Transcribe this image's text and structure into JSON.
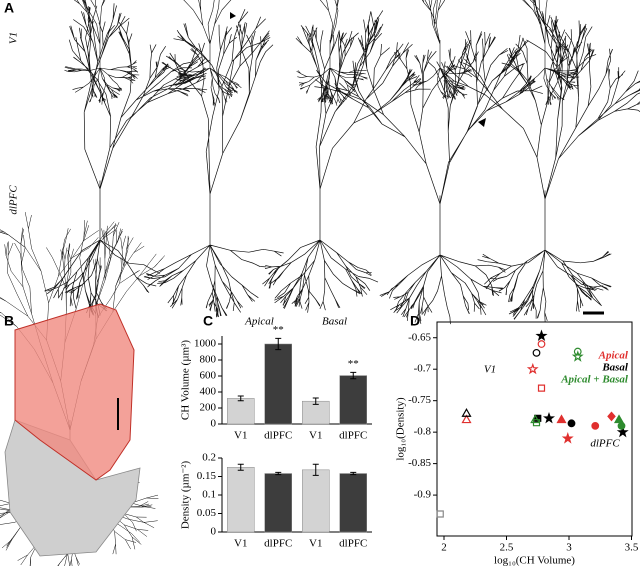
{
  "panels": {
    "letters": [
      "A",
      "B",
      "C",
      "D"
    ],
    "rows": [
      "V1",
      "dlPFC"
    ]
  },
  "chart_data": [
    {
      "type": "bar",
      "ylabel": "CH Volume (µm³)",
      "groups": [
        "Apical",
        "Basal"
      ],
      "categories": [
        "V1",
        "dlPFC",
        "V1",
        "dlPFC"
      ],
      "values": [
        320,
        1000,
        285,
        605
      ],
      "errors": [
        30,
        70,
        40,
        40
      ],
      "colors": [
        "#d3d3d3",
        "#3d3d3d",
        "#d3d3d3",
        "#3d3d3d"
      ],
      "annotations": [
        {
          "text": "**",
          "index": 1
        },
        {
          "text": "**",
          "index": 3
        }
      ],
      "ylim": [
        0,
        1100
      ],
      "yticks": [
        0,
        200,
        400,
        600,
        800,
        1000
      ]
    },
    {
      "type": "bar",
      "ylabel": "Density (µm⁻²)",
      "categories": [
        "V1",
        "dlPFC",
        "V1",
        "dlPFC"
      ],
      "values": [
        0.175,
        0.158,
        0.168,
        0.158
      ],
      "errors": [
        0.008,
        0.003,
        0.015,
        0.003
      ],
      "colors": [
        "#d3d3d3",
        "#3d3d3d",
        "#d3d3d3",
        "#3d3d3d"
      ],
      "ylim": [
        0,
        0.2
      ],
      "yticks": [
        0,
        0.05,
        0.1,
        0.15,
        0.2
      ]
    },
    {
      "type": "scatter",
      "xlabel": "log₁₀(CH Volume)",
      "ylabel": "log₁₀(Density)",
      "xlim": [
        1.944,
        3.504
      ],
      "xticks": [
        2,
        2.5,
        3,
        3.5
      ],
      "ylim": [
        -0.965,
        -0.625
      ],
      "yticks": [
        -0.65,
        -0.7,
        -0.75,
        -0.8,
        -0.85,
        -0.9
      ],
      "annotations": [
        "V1",
        "dlPFC"
      ],
      "series": [
        {
          "name": "Apical",
          "color": "#e0302f",
          "x": [
            2.78,
            2.71,
            2.78,
            2.18,
            3.21,
            2.94,
            3.34,
            2.99
          ],
          "y": [
            -0.66,
            -0.7,
            -0.73,
            -0.78,
            -0.79,
            -0.78,
            -0.775,
            -0.81
          ],
          "markers": [
            "circle",
            "star",
            "square",
            "triangle",
            "circle",
            "triangle",
            "diamond",
            "star"
          ],
          "filled": [
            false,
            false,
            false,
            false,
            true,
            true,
            true,
            true
          ]
        },
        {
          "name": "Basal",
          "color": "#000000",
          "x": [
            2.78,
            2.74,
            2.18,
            3.02,
            2.75,
            2.84,
            3.43
          ],
          "y": [
            -0.647,
            -0.674,
            -0.77,
            -0.786,
            -0.778,
            -0.778,
            -0.8
          ],
          "markers": [
            "star",
            "circle",
            "triangle",
            "circle",
            "square",
            "star",
            "star"
          ],
          "filled": [
            true,
            false,
            false,
            true,
            true,
            true,
            true
          ]
        },
        {
          "name": "Apical + Basal",
          "color": "#2e8b2e",
          "x": [
            3.07,
            3.07,
            2.73,
            2.74,
            3.42,
            3.4
          ],
          "y": [
            -0.672,
            -0.68,
            -0.78,
            -0.785,
            -0.79,
            -0.78
          ],
          "markers": [
            "circle",
            "star",
            "triangle",
            "square",
            "circle",
            "triangle"
          ],
          "filled": [
            false,
            false,
            false,
            false,
            true,
            true
          ]
        },
        {
          "color": "#888888",
          "x": [
            1.97
          ],
          "y": [
            -0.93
          ],
          "markers": [
            "square"
          ],
          "filled": [
            false
          ]
        }
      ]
    }
  ]
}
